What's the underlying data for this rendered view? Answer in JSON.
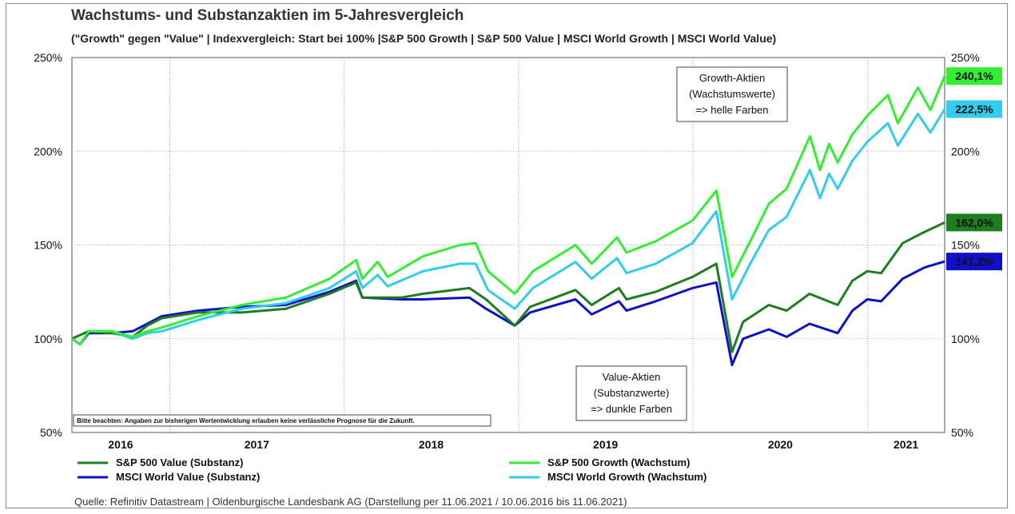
{
  "header": {
    "title": "Wachstums- und Substanzaktien im 5-Jahresvergleich",
    "subtitle": "(\"Growth\" gegen \"Value\" | Indexvergleich: Start bei 100% |S&P 500 Growth | S&P 500 Value | MSCI World Growth | MSCI World Value)"
  },
  "footer": {
    "source": "Quelle: Refinitiv Datastream | Oldenburgische Landesbank AG (Darstellung per 11.06.2021 / 10.06.2016 bis 11.06.2021)"
  },
  "chart_data": {
    "type": "line",
    "x_start": "2016-06-10",
    "x_end": "2021-06-11",
    "x_tick_labels": [
      "2016",
      "2017",
      "2018",
      "2019",
      "2020",
      "2021"
    ],
    "y_tick_labels_left": [
      "250%",
      "200%",
      "150%",
      "100%",
      "50%"
    ],
    "y_tick_values_left": [
      250,
      200,
      150,
      100,
      50
    ],
    "y_tick_labels_right": [
      "250%",
      "200%",
      "150%",
      "100%",
      "50%"
    ],
    "y_tick_values_right": [
      250,
      200,
      150,
      100,
      50
    ],
    "ylim": [
      50,
      250
    ],
    "grid": true,
    "legend_position": "bottom",
    "note": "Bitte beachten: Angaben zur bisherigen Wertentwicklung erlauben keine verlässliche Prognose für die Zukunft.",
    "annotations": [
      {
        "lines": [
          "Growth-Aktien",
          "(Wachstumswerte)",
          "=> helle Farben"
        ]
      },
      {
        "lines": [
          "Value-Aktien",
          "(Substanzwerte)",
          "=> dunkle Farben"
        ]
      }
    ],
    "series": [
      {
        "name": "S&P 500 Value (Substanz)",
        "color": "#1e7d1e",
        "end_label": "162,0%",
        "points": [
          [
            "2016-06-10",
            100
          ],
          [
            "2016-07-15",
            104
          ],
          [
            "2016-09-01",
            103
          ],
          [
            "2016-10-15",
            101
          ],
          [
            "2016-11-15",
            107
          ],
          [
            "2016-12-15",
            111
          ],
          [
            "2017-03-01",
            114
          ],
          [
            "2017-06-01",
            114
          ],
          [
            "2017-09-01",
            116
          ],
          [
            "2017-12-01",
            124
          ],
          [
            "2018-01-26",
            130
          ],
          [
            "2018-02-08",
            122
          ],
          [
            "2018-03-15",
            122
          ],
          [
            "2018-05-01",
            122
          ],
          [
            "2018-06-15",
            124
          ],
          [
            "2018-09-20",
            127
          ],
          [
            "2018-10-25",
            121
          ],
          [
            "2018-12-24",
            107
          ],
          [
            "2019-01-25",
            117
          ],
          [
            "2019-04-30",
            126
          ],
          [
            "2019-06-03",
            118
          ],
          [
            "2019-07-30",
            127
          ],
          [
            "2019-08-15",
            121
          ],
          [
            "2019-10-15",
            125
          ],
          [
            "2019-12-31",
            133
          ],
          [
            "2020-02-19",
            140
          ],
          [
            "2020-03-23",
            93
          ],
          [
            "2020-04-15",
            109
          ],
          [
            "2020-06-08",
            118
          ],
          [
            "2020-07-15",
            115
          ],
          [
            "2020-09-01",
            124
          ],
          [
            "2020-10-30",
            118
          ],
          [
            "2020-11-30",
            131
          ],
          [
            "2020-12-31",
            136
          ],
          [
            "2021-01-29",
            135
          ],
          [
            "2021-03-15",
            151
          ],
          [
            "2021-04-30",
            157
          ],
          [
            "2021-06-11",
            162
          ]
        ]
      },
      {
        "name": "MSCI World Value (Substanz)",
        "color": "#1010c8",
        "end_label": "141,2%",
        "points": [
          [
            "2016-06-10",
            100
          ],
          [
            "2016-06-27",
            97
          ],
          [
            "2016-07-15",
            103
          ],
          [
            "2016-09-01",
            103
          ],
          [
            "2016-10-15",
            104
          ],
          [
            "2016-11-15",
            108
          ],
          [
            "2016-12-15",
            112
          ],
          [
            "2017-03-01",
            115
          ],
          [
            "2017-06-01",
            117
          ],
          [
            "2017-09-01",
            118
          ],
          [
            "2017-12-01",
            125
          ],
          [
            "2018-01-26",
            131
          ],
          [
            "2018-02-08",
            122
          ],
          [
            "2018-05-01",
            121
          ],
          [
            "2018-06-15",
            121
          ],
          [
            "2018-09-20",
            122
          ],
          [
            "2018-10-25",
            116
          ],
          [
            "2018-12-24",
            107
          ],
          [
            "2019-01-25",
            114
          ],
          [
            "2019-04-30",
            121
          ],
          [
            "2019-06-03",
            113
          ],
          [
            "2019-07-30",
            120
          ],
          [
            "2019-08-15",
            115
          ],
          [
            "2019-10-15",
            120
          ],
          [
            "2019-12-31",
            127
          ],
          [
            "2020-02-19",
            130
          ],
          [
            "2020-03-23",
            86
          ],
          [
            "2020-04-15",
            100
          ],
          [
            "2020-06-08",
            105
          ],
          [
            "2020-07-15",
            101
          ],
          [
            "2020-09-01",
            108
          ],
          [
            "2020-10-30",
            103
          ],
          [
            "2020-11-30",
            115
          ],
          [
            "2020-12-31",
            121
          ],
          [
            "2021-01-29",
            120
          ],
          [
            "2021-03-15",
            132
          ],
          [
            "2021-04-30",
            138
          ],
          [
            "2021-06-11",
            141.2
          ]
        ]
      },
      {
        "name": "S&P 500 Growth (Wachstum)",
        "color": "#33ee33",
        "end_label": "240,1%",
        "points": [
          [
            "2016-06-10",
            100
          ],
          [
            "2016-06-27",
            97
          ],
          [
            "2016-07-15",
            104
          ],
          [
            "2016-09-01",
            104
          ],
          [
            "2016-10-15",
            101
          ],
          [
            "2016-11-15",
            104
          ],
          [
            "2016-12-15",
            106
          ],
          [
            "2017-03-01",
            112
          ],
          [
            "2017-06-01",
            118
          ],
          [
            "2017-09-01",
            122
          ],
          [
            "2017-12-01",
            132
          ],
          [
            "2018-01-26",
            142
          ],
          [
            "2018-02-08",
            132
          ],
          [
            "2018-03-12",
            141
          ],
          [
            "2018-04-02",
            133
          ],
          [
            "2018-06-15",
            144
          ],
          [
            "2018-08-31",
            150
          ],
          [
            "2018-10-03",
            151
          ],
          [
            "2018-10-29",
            136
          ],
          [
            "2018-12-24",
            124
          ],
          [
            "2019-01-31",
            136
          ],
          [
            "2019-04-30",
            150
          ],
          [
            "2019-06-03",
            140
          ],
          [
            "2019-07-26",
            154
          ],
          [
            "2019-08-15",
            146
          ],
          [
            "2019-10-15",
            152
          ],
          [
            "2019-12-31",
            163
          ],
          [
            "2020-02-19",
            179
          ],
          [
            "2020-03-23",
            133
          ],
          [
            "2020-04-30",
            152
          ],
          [
            "2020-06-08",
            172
          ],
          [
            "2020-07-15",
            180
          ],
          [
            "2020-09-02",
            208
          ],
          [
            "2020-09-23",
            190
          ],
          [
            "2020-10-12",
            204
          ],
          [
            "2020-10-30",
            194
          ],
          [
            "2020-11-30",
            209
          ],
          [
            "2020-12-31",
            219
          ],
          [
            "2021-02-12",
            230
          ],
          [
            "2021-03-05",
            215
          ],
          [
            "2021-04-16",
            234
          ],
          [
            "2021-05-12",
            222
          ],
          [
            "2021-06-11",
            240.1
          ]
        ]
      },
      {
        "name": "MSCI World Growth (Wachstum)",
        "color": "#33ccee",
        "end_label": "222,5%",
        "points": [
          [
            "2016-06-10",
            100
          ],
          [
            "2016-06-27",
            97
          ],
          [
            "2016-07-15",
            104
          ],
          [
            "2016-09-01",
            104
          ],
          [
            "2016-10-15",
            100
          ],
          [
            "2016-11-15",
            103
          ],
          [
            "2016-12-15",
            104
          ],
          [
            "2017-03-01",
            110
          ],
          [
            "2017-06-01",
            116
          ],
          [
            "2017-09-01",
            119
          ],
          [
            "2017-12-01",
            127
          ],
          [
            "2018-01-26",
            136
          ],
          [
            "2018-02-08",
            127
          ],
          [
            "2018-03-12",
            134
          ],
          [
            "2018-04-02",
            128
          ],
          [
            "2018-06-15",
            136
          ],
          [
            "2018-08-31",
            140
          ],
          [
            "2018-10-03",
            140
          ],
          [
            "2018-10-29",
            126
          ],
          [
            "2018-12-24",
            116
          ],
          [
            "2019-01-31",
            127
          ],
          [
            "2019-04-30",
            141
          ],
          [
            "2019-06-03",
            132
          ],
          [
            "2019-07-26",
            143
          ],
          [
            "2019-08-15",
            135
          ],
          [
            "2019-10-15",
            140
          ],
          [
            "2019-12-31",
            151
          ],
          [
            "2020-02-19",
            168
          ],
          [
            "2020-03-23",
            121
          ],
          [
            "2020-04-30",
            140
          ],
          [
            "2020-06-08",
            158
          ],
          [
            "2020-07-15",
            165
          ],
          [
            "2020-09-02",
            190
          ],
          [
            "2020-09-23",
            175
          ],
          [
            "2020-10-12",
            188
          ],
          [
            "2020-10-30",
            180
          ],
          [
            "2020-11-30",
            195
          ],
          [
            "2020-12-31",
            205
          ],
          [
            "2021-02-12",
            215
          ],
          [
            "2021-03-05",
            203
          ],
          [
            "2021-04-16",
            220
          ],
          [
            "2021-05-12",
            210
          ],
          [
            "2021-06-11",
            222.5
          ]
        ]
      }
    ]
  }
}
